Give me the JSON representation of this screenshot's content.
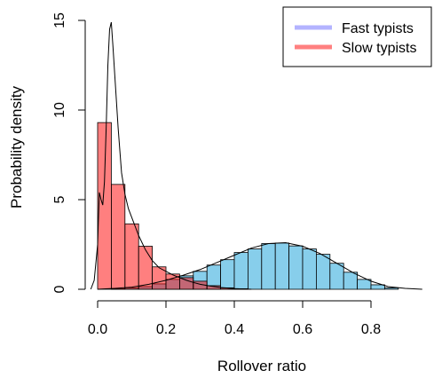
{
  "chart_data": {
    "type": "histogram",
    "xlabel": "Rollover ratio",
    "ylabel": "Probability density",
    "xlim": [
      0.0,
      0.97
    ],
    "ylim": [
      0,
      15
    ],
    "xticks": [
      0.0,
      0.2,
      0.4,
      0.6,
      0.8
    ],
    "xtick_labels": [
      "0.0",
      "0.2",
      "0.4",
      "0.6",
      "0.8"
    ],
    "yticks": [
      0,
      5,
      10,
      15
    ],
    "ytick_labels": [
      "0",
      "5",
      "10",
      "15"
    ],
    "grid": false,
    "legend_position": "top-right",
    "bin_width": 0.04,
    "series": [
      {
        "name": "Fast typists",
        "legend_color": "#b3b3ff",
        "fill_color": "#87ceeb",
        "bins_left": [
          0.04,
          0.08,
          0.12,
          0.16,
          0.2,
          0.24,
          0.28,
          0.32,
          0.36,
          0.4,
          0.44,
          0.48,
          0.52,
          0.56,
          0.6,
          0.64,
          0.68,
          0.72,
          0.76,
          0.8,
          0.84
        ],
        "densities": [
          0.03,
          0.08,
          0.15,
          0.3,
          0.55,
          0.75,
          1.0,
          1.35,
          1.65,
          2.05,
          2.25,
          2.55,
          2.58,
          2.42,
          2.25,
          1.95,
          1.45,
          0.95,
          0.55,
          0.25,
          0.08
        ],
        "density_curve": {
          "x": [
            0.0,
            0.05,
            0.1,
            0.15,
            0.2,
            0.25,
            0.3,
            0.35,
            0.4,
            0.45,
            0.5,
            0.55,
            0.6,
            0.65,
            0.7,
            0.75,
            0.8,
            0.85,
            0.9,
            0.95
          ],
          "y": [
            0.0,
            0.05,
            0.12,
            0.28,
            0.5,
            0.78,
            1.1,
            1.5,
            1.9,
            2.3,
            2.55,
            2.6,
            2.4,
            2.0,
            1.45,
            0.9,
            0.45,
            0.15,
            0.05,
            0.0
          ]
        }
      },
      {
        "name": "Slow typists",
        "legend_color": "#ff8080",
        "fill_color": "#ff0000",
        "fill_alpha": 0.5,
        "bins_left": [
          0.0,
          0.04,
          0.08,
          0.12,
          0.16,
          0.2,
          0.24,
          0.28,
          0.32,
          0.36,
          0.4
        ],
        "densities": [
          9.3,
          5.85,
          3.65,
          2.4,
          1.25,
          0.85,
          0.65,
          0.45,
          0.2,
          0.08,
          0.03
        ],
        "density_curve": {
          "x": [
            -0.02,
            -0.01,
            0.0,
            0.005,
            0.01,
            0.015,
            0.02,
            0.025,
            0.03,
            0.035,
            0.04,
            0.045,
            0.05,
            0.055,
            0.06,
            0.07,
            0.08,
            0.09,
            0.1,
            0.11,
            0.12,
            0.13,
            0.14,
            0.15,
            0.16,
            0.18,
            0.2,
            0.22,
            0.24,
            0.26,
            0.28,
            0.3,
            0.33,
            0.36,
            0.4,
            0.45
          ],
          "y": [
            0.0,
            0.5,
            2.5,
            5.4,
            5.0,
            4.7,
            6.0,
            9.0,
            12.5,
            14.5,
            14.9,
            13.5,
            12.0,
            10.5,
            9.0,
            6.5,
            5.3,
            4.5,
            4.0,
            3.5,
            3.0,
            2.6,
            2.2,
            1.9,
            1.6,
            1.2,
            1.0,
            0.8,
            0.65,
            0.5,
            0.38,
            0.28,
            0.18,
            0.1,
            0.04,
            0.0
          ]
        }
      }
    ]
  }
}
